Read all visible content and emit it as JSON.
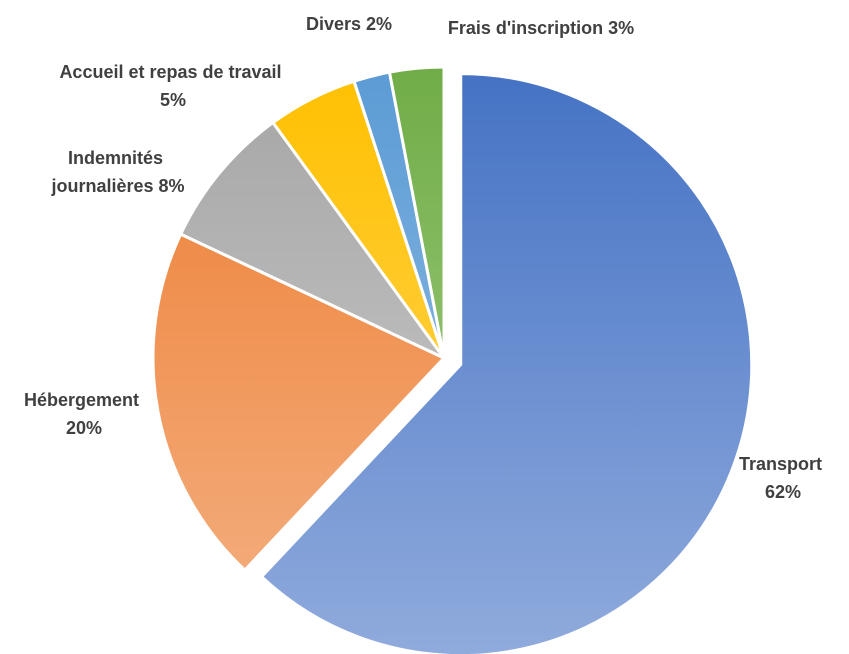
{
  "chart_data": {
    "type": "pie",
    "title": "",
    "slices": [
      {
        "name": "Transport",
        "value": 62,
        "percent_label": "62%",
        "color": "#4472C4",
        "color_light": "#8FAADC",
        "exploded": true
      },
      {
        "name": "Hébergement",
        "value": 20,
        "percent_label": "20%",
        "color": "#ED7D31",
        "color_light": "#F4B183",
        "exploded": false
      },
      {
        "name": "Indemnités journalières",
        "value": 8,
        "percent_label": "8%",
        "color": "#A5A5A5",
        "color_light": "#D0D0D0",
        "exploded": false
      },
      {
        "name": "Accueil et repas de travail",
        "value": 5,
        "percent_label": "5%",
        "color": "#FFC000",
        "color_light": "#FFD966",
        "exploded": false
      },
      {
        "name": "Divers",
        "value": 2,
        "percent_label": "2%",
        "color": "#5B9BD5",
        "color_light": "#9DC3E6",
        "exploded": false
      },
      {
        "name": "Frais d'inscription",
        "value": 3,
        "percent_label": "3%",
        "color": "#70AD47",
        "color_light": "#A9D18E",
        "exploded": false
      }
    ],
    "start_angle_deg": 0,
    "direction": "clockwise",
    "legend": "none",
    "data_labels": {
      "transport": {
        "line1": "Transport",
        "line2": "62%"
      },
      "hebergement": {
        "line1": "Hébergement",
        "line2": "20%"
      },
      "indemnites": {
        "line1": "Indemnités",
        "line2": "journalières 8%"
      },
      "accueil": {
        "line1": "Accueil et repas de travail",
        "line2": "5%"
      },
      "divers": {
        "line1": "Divers 2%"
      },
      "inscription": {
        "line1": "Frais d'inscription 3%"
      }
    }
  }
}
